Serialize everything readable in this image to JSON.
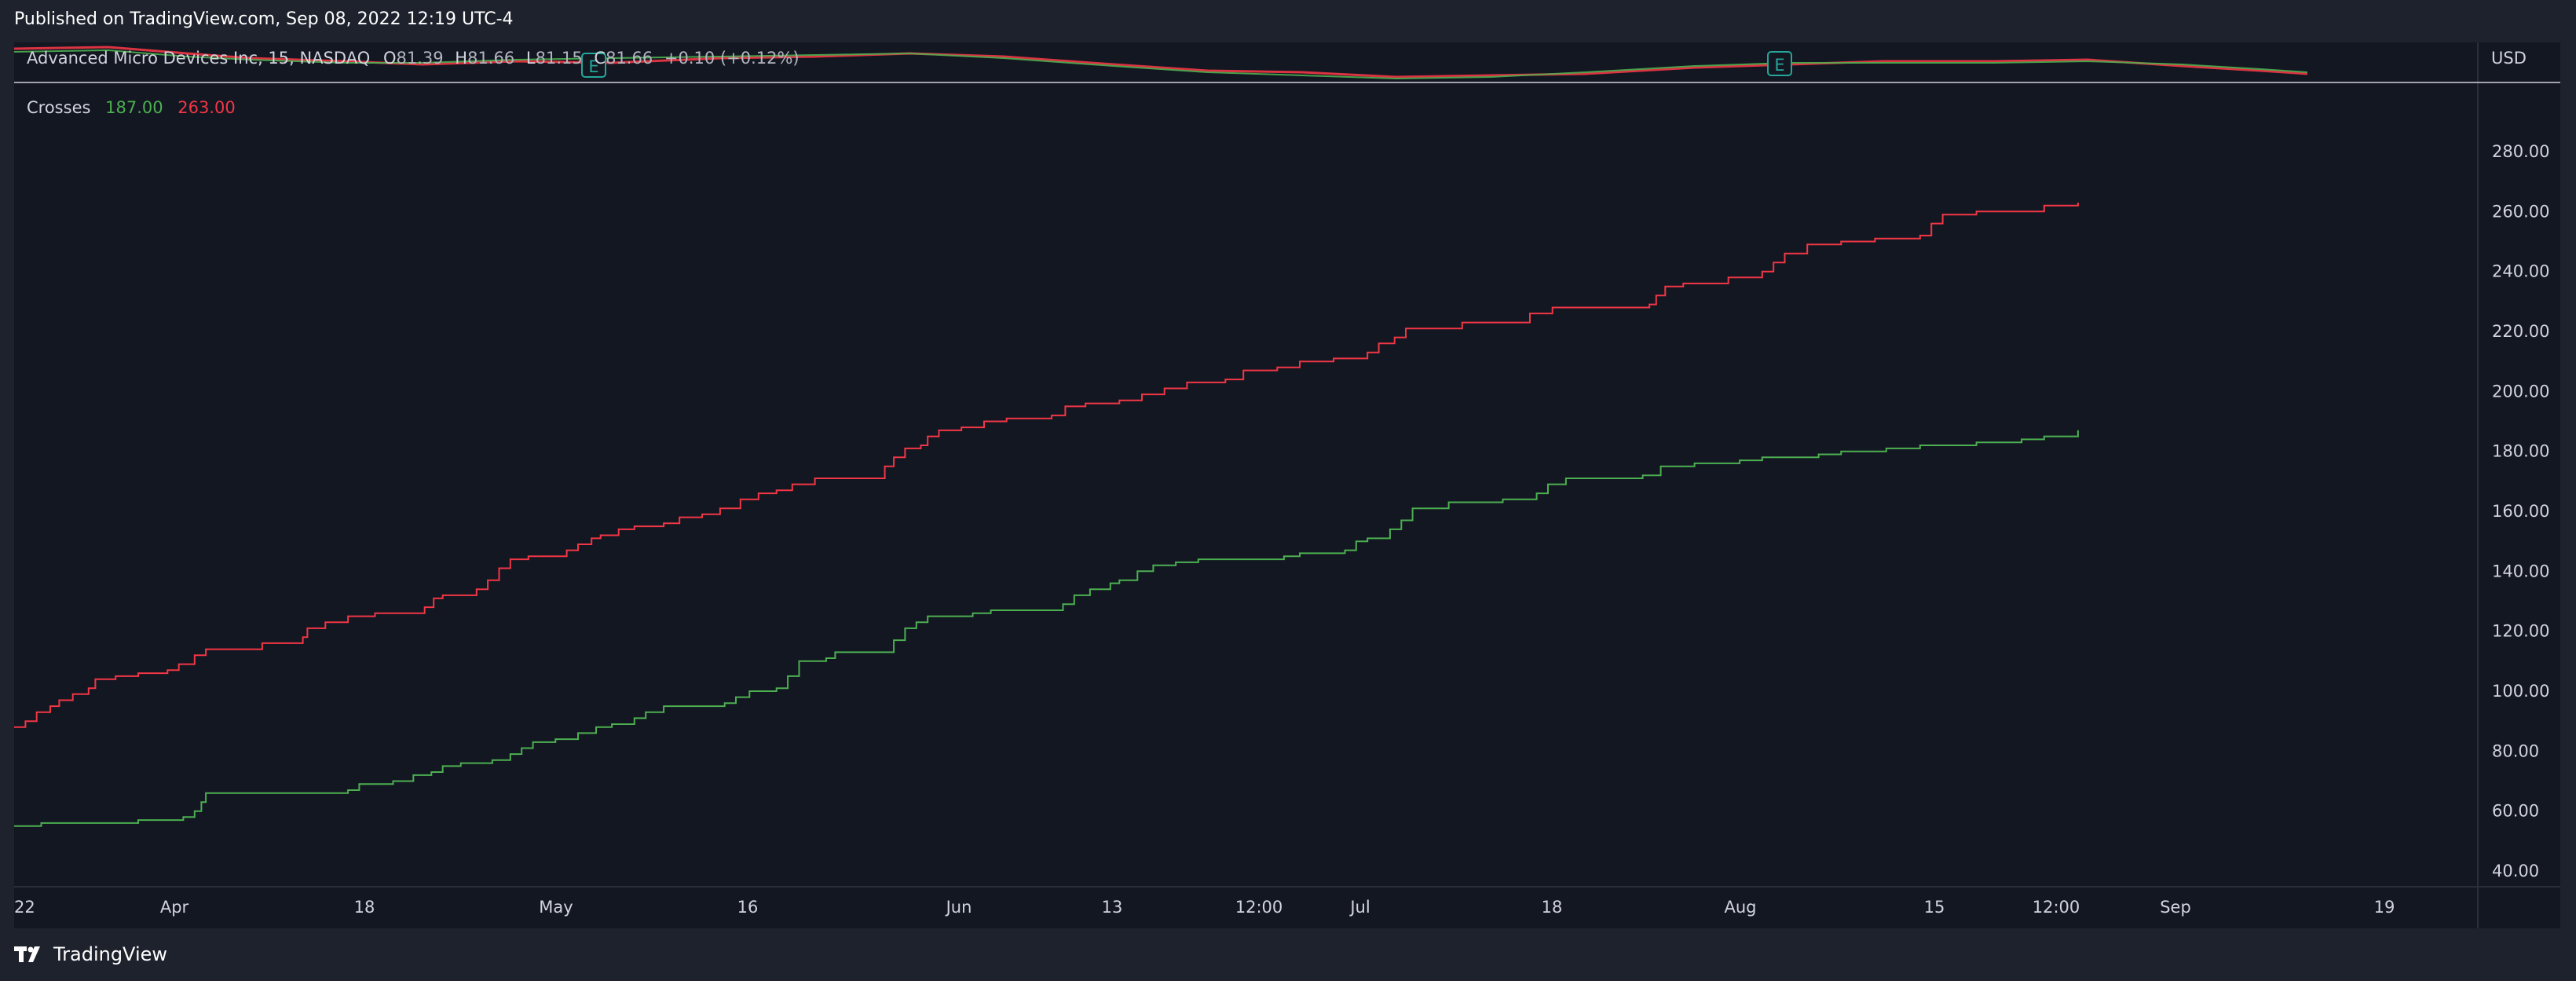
{
  "header": {
    "published_text": "Published on TradingView.com, Sep 08, 2022 12:19 UTC-4"
  },
  "symbol_bar": {
    "name": "Advanced Micro Devices Inc, 15, NASDAQ",
    "open_label": "O",
    "open": "81.39",
    "high_label": "H",
    "high": "81.66",
    "low_label": "L",
    "low": "81.15",
    "close_label": "C",
    "close": "81.66",
    "change": "+0.10 (+0.12%)",
    "currency": "USD",
    "earnings_marker": "E"
  },
  "indicator": {
    "name": "Crosses",
    "value_green": "187.00",
    "value_red": "263.00"
  },
  "colors": {
    "background": "#131722",
    "frame": "#1e222d",
    "green": "#4caf50",
    "red": "#f23645",
    "text": "#d1d4dc"
  },
  "footer": {
    "brand": "TradingView",
    "logo_icon": "tradingview-logo-icon"
  },
  "chart_data": {
    "type": "line",
    "x_ticks": [
      "22",
      "Apr",
      "18",
      "May",
      "16",
      "Jun",
      "13",
      "12:00",
      "Jul",
      "18",
      "Aug",
      "15",
      "12:00",
      "Sep",
      "19"
    ],
    "y_ticks": [
      "280.00",
      "260.00",
      "240.00",
      "220.00",
      "200.00",
      "180.00",
      "160.00",
      "140.00",
      "120.00",
      "100.00",
      "80.00",
      "60.00",
      "40.00"
    ],
    "ylim": [
      34,
      290
    ],
    "x_range": [
      0,
      1
    ],
    "series": [
      {
        "name": "187.00",
        "color": "#4caf50",
        "points": [
          [
            0.0,
            55
          ],
          [
            0.012,
            56
          ],
          [
            0.055,
            57
          ],
          [
            0.075,
            58
          ],
          [
            0.08,
            60
          ],
          [
            0.083,
            63
          ],
          [
            0.085,
            66
          ],
          [
            0.13,
            66
          ],
          [
            0.148,
            67
          ],
          [
            0.153,
            69
          ],
          [
            0.168,
            70
          ],
          [
            0.177,
            72
          ],
          [
            0.185,
            73
          ],
          [
            0.19,
            75
          ],
          [
            0.198,
            76
          ],
          [
            0.212,
            77
          ],
          [
            0.22,
            79
          ],
          [
            0.225,
            81
          ],
          [
            0.23,
            83
          ],
          [
            0.24,
            84
          ],
          [
            0.25,
            86
          ],
          [
            0.258,
            88
          ],
          [
            0.265,
            89
          ],
          [
            0.275,
            91
          ],
          [
            0.28,
            93
          ],
          [
            0.288,
            95
          ],
          [
            0.296,
            95
          ],
          [
            0.315,
            96
          ],
          [
            0.32,
            98
          ],
          [
            0.326,
            100
          ],
          [
            0.338,
            101
          ],
          [
            0.343,
            105
          ],
          [
            0.348,
            110
          ],
          [
            0.36,
            111
          ],
          [
            0.364,
            113
          ],
          [
            0.383,
            113
          ],
          [
            0.39,
            117
          ],
          [
            0.395,
            121
          ],
          [
            0.4,
            123
          ],
          [
            0.405,
            125
          ],
          [
            0.425,
            126
          ],
          [
            0.433,
            127
          ],
          [
            0.465,
            129
          ],
          [
            0.47,
            132
          ],
          [
            0.477,
            134
          ],
          [
            0.486,
            136
          ],
          [
            0.49,
            137
          ],
          [
            0.498,
            140
          ],
          [
            0.505,
            142
          ],
          [
            0.515,
            143
          ],
          [
            0.525,
            144
          ],
          [
            0.563,
            145
          ],
          [
            0.57,
            146
          ],
          [
            0.59,
            147
          ],
          [
            0.595,
            150
          ],
          [
            0.6,
            151
          ],
          [
            0.61,
            154
          ],
          [
            0.615,
            157
          ],
          [
            0.62,
            161
          ],
          [
            0.636,
            163
          ],
          [
            0.66,
            164
          ],
          [
            0.675,
            166
          ],
          [
            0.68,
            169
          ],
          [
            0.688,
            171
          ],
          [
            0.722,
            172
          ],
          [
            0.73,
            175
          ],
          [
            0.745,
            176
          ],
          [
            0.765,
            177
          ],
          [
            0.775,
            178
          ],
          [
            0.8,
            179
          ],
          [
            0.81,
            180
          ],
          [
            0.83,
            181
          ],
          [
            0.845,
            182
          ],
          [
            0.87,
            183
          ],
          [
            0.89,
            184
          ],
          [
            0.9,
            185
          ],
          [
            0.915,
            187
          ]
        ]
      },
      {
        "name": "263.00",
        "color": "#f23645",
        "points": [
          [
            0.0,
            88
          ],
          [
            0.005,
            90
          ],
          [
            0.01,
            93
          ],
          [
            0.016,
            95
          ],
          [
            0.02,
            97
          ],
          [
            0.026,
            99
          ],
          [
            0.033,
            101
          ],
          [
            0.036,
            104
          ],
          [
            0.045,
            105
          ],
          [
            0.055,
            106
          ],
          [
            0.068,
            107
          ],
          [
            0.073,
            109
          ],
          [
            0.08,
            112
          ],
          [
            0.085,
            114
          ],
          [
            0.11,
            116
          ],
          [
            0.128,
            118
          ],
          [
            0.13,
            121
          ],
          [
            0.138,
            123
          ],
          [
            0.148,
            125
          ],
          [
            0.16,
            126
          ],
          [
            0.182,
            128
          ],
          [
            0.186,
            131
          ],
          [
            0.19,
            132
          ],
          [
            0.205,
            134
          ],
          [
            0.21,
            137
          ],
          [
            0.215,
            141
          ],
          [
            0.22,
            144
          ],
          [
            0.228,
            145
          ],
          [
            0.245,
            147
          ],
          [
            0.25,
            149
          ],
          [
            0.256,
            151
          ],
          [
            0.26,
            152
          ],
          [
            0.268,
            154
          ],
          [
            0.275,
            155
          ],
          [
            0.288,
            156
          ],
          [
            0.295,
            158
          ],
          [
            0.305,
            159
          ],
          [
            0.313,
            161
          ],
          [
            0.322,
            164
          ],
          [
            0.33,
            166
          ],
          [
            0.338,
            167
          ],
          [
            0.345,
            169
          ],
          [
            0.355,
            171
          ],
          [
            0.383,
            171
          ],
          [
            0.386,
            175
          ],
          [
            0.39,
            178
          ],
          [
            0.395,
            181
          ],
          [
            0.402,
            182
          ],
          [
            0.405,
            185
          ],
          [
            0.41,
            187
          ],
          [
            0.42,
            188
          ],
          [
            0.43,
            190
          ],
          [
            0.44,
            191
          ],
          [
            0.46,
            192
          ],
          [
            0.466,
            195
          ],
          [
            0.475,
            196
          ],
          [
            0.49,
            197
          ],
          [
            0.5,
            199
          ],
          [
            0.51,
            201
          ],
          [
            0.52,
            203
          ],
          [
            0.537,
            204
          ],
          [
            0.545,
            207
          ],
          [
            0.56,
            208
          ],
          [
            0.57,
            210
          ],
          [
            0.585,
            211
          ],
          [
            0.6,
            213
          ],
          [
            0.605,
            216
          ],
          [
            0.612,
            218
          ],
          [
            0.617,
            221
          ],
          [
            0.63,
            221
          ],
          [
            0.642,
            223
          ],
          [
            0.66,
            223
          ],
          [
            0.672,
            226
          ],
          [
            0.682,
            228
          ],
          [
            0.725,
            229
          ],
          [
            0.728,
            232
          ],
          [
            0.732,
            235
          ],
          [
            0.74,
            236
          ],
          [
            0.76,
            238
          ],
          [
            0.775,
            240
          ],
          [
            0.78,
            243
          ],
          [
            0.785,
            246
          ],
          [
            0.795,
            249
          ],
          [
            0.81,
            250
          ],
          [
            0.825,
            251
          ],
          [
            0.845,
            252
          ],
          [
            0.85,
            256
          ],
          [
            0.855,
            259
          ],
          [
            0.87,
            260
          ],
          [
            0.9,
            262
          ],
          [
            0.915,
            263
          ]
        ]
      }
    ]
  }
}
